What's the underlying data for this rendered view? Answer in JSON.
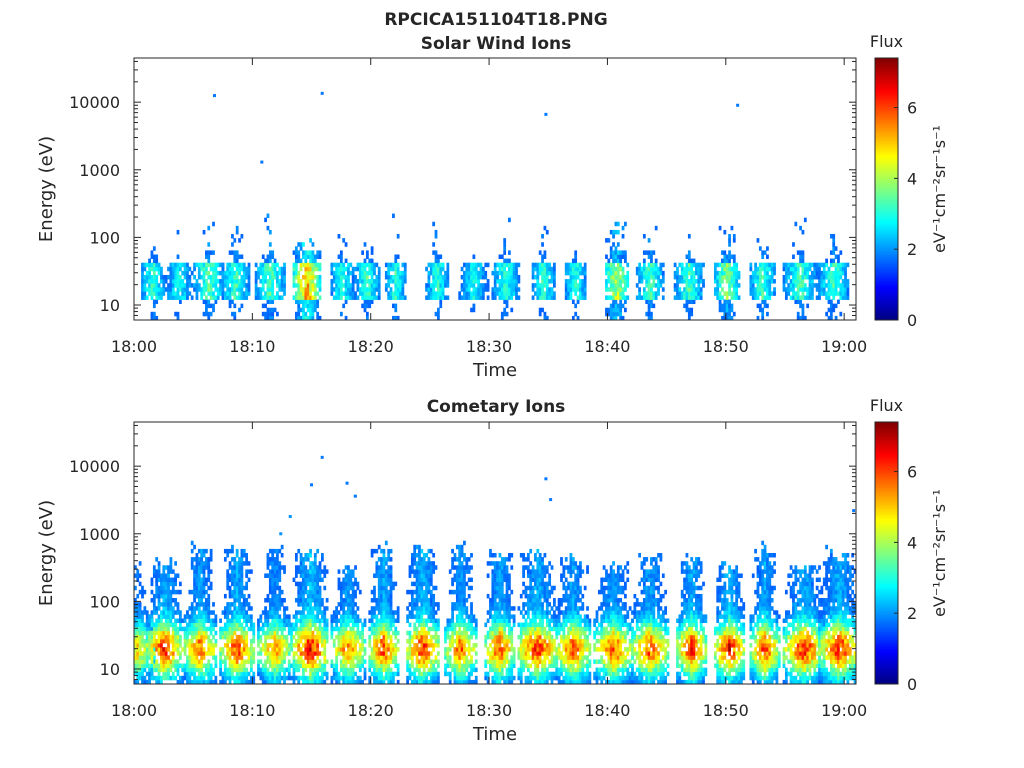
{
  "figure": {
    "filename": "RPCICA151104T18.PNG"
  },
  "chart_data": [
    {
      "type": "heatmap",
      "title": "Solar Wind Ions",
      "xlabel": "Time",
      "ylabel": "Energy (eV)",
      "x_ticks": [
        "18:00",
        "18:10",
        "18:20",
        "18:30",
        "18:40",
        "18:50",
        "19:00"
      ],
      "x_range": [
        "18:00",
        "19:01"
      ],
      "y_scale": "log",
      "y_ticks": [
        10,
        100,
        1000,
        10000
      ],
      "y_range": [
        6,
        45000
      ],
      "colorbar": {
        "label": "Flux",
        "unit": "eV⁻¹cm⁻²sr⁻¹s⁻¹",
        "ticks": [
          0,
          2,
          4,
          6
        ],
        "range": [
          0,
          7.4
        ],
        "colormap": "jet"
      },
      "bursts_minutes": [
        1.5,
        3.7,
        6.2,
        8.5,
        11.4,
        14.5,
        17.5,
        19.6,
        22.0,
        25.5,
        28.6,
        31.3,
        34.5,
        37.2,
        40.7,
        43.5,
        46.8,
        50.0,
        53.0,
        56.2,
        59.0
      ],
      "burst_peak_flux": [
        3.5,
        3.2,
        3.8,
        3.6,
        3.7,
        5.8,
        3.4,
        3.6,
        3.4,
        3.5,
        3.1,
        3.5,
        3.5,
        3.4,
        4.6,
        3.7,
        3.6,
        4.2,
        3.6,
        3.6,
        3.6
      ],
      "isolated_points": [
        {
          "t": 6.8,
          "e": 12500,
          "flux": 1.8
        },
        {
          "t": 15.9,
          "e": 13500,
          "flux": 1.8
        },
        {
          "t": 34.8,
          "e": 6600,
          "flux": 1.8
        },
        {
          "t": 51.0,
          "e": 9000,
          "flux": 1.8
        },
        {
          "t": 10.8,
          "e": 1300,
          "flux": 1.8
        }
      ]
    },
    {
      "type": "heatmap",
      "title": "Cometary Ions",
      "xlabel": "Time",
      "ylabel": "Energy (eV)",
      "x_ticks": [
        "18:00",
        "18:10",
        "18:20",
        "18:30",
        "18:40",
        "18:50",
        "19:00"
      ],
      "x_range": [
        "18:00",
        "19:01"
      ],
      "y_scale": "log",
      "y_ticks": [
        10,
        100,
        1000,
        10000
      ],
      "y_range": [
        6,
        45000
      ],
      "colorbar": {
        "label": "Flux",
        "unit": "eV⁻¹cm⁻²sr⁻¹s⁻¹",
        "ticks": [
          0,
          2,
          4,
          6
        ],
        "range": [
          0,
          7.4
        ],
        "colormap": "jet"
      },
      "bursts_minutes": [
        0.2,
        2.5,
        5.5,
        8.6,
        11.8,
        14.8,
        18.0,
        21.0,
        24.3,
        27.5,
        30.8,
        34.0,
        37.0,
        40.4,
        43.5,
        47.0,
        50.2,
        53.2,
        56.5,
        59.5
      ],
      "burst_peak_flux": [
        5.3,
        6.8,
        6.4,
        6.6,
        6.0,
        7.2,
        6.2,
        6.6,
        6.9,
        6.3,
        6.6,
        6.8,
        6.5,
        6.5,
        6.4,
        6.8,
        6.9,
        6.6,
        6.8,
        6.8
      ],
      "isolated_points": [
        {
          "t": 15.9,
          "e": 13500,
          "flux": 1.8
        },
        {
          "t": 15.0,
          "e": 5300,
          "flux": 1.8
        },
        {
          "t": 18.0,
          "e": 5600,
          "flux": 1.8
        },
        {
          "t": 18.7,
          "e": 3600,
          "flux": 1.8
        },
        {
          "t": 34.8,
          "e": 6500,
          "flux": 1.8
        },
        {
          "t": 35.2,
          "e": 3200,
          "flux": 1.8
        },
        {
          "t": 13.2,
          "e": 1800,
          "flux": 2.0
        },
        {
          "t": 12.4,
          "e": 1000,
          "flux": 2.0
        },
        {
          "t": 60.8,
          "e": 2200,
          "flux": 1.8
        }
      ]
    }
  ]
}
